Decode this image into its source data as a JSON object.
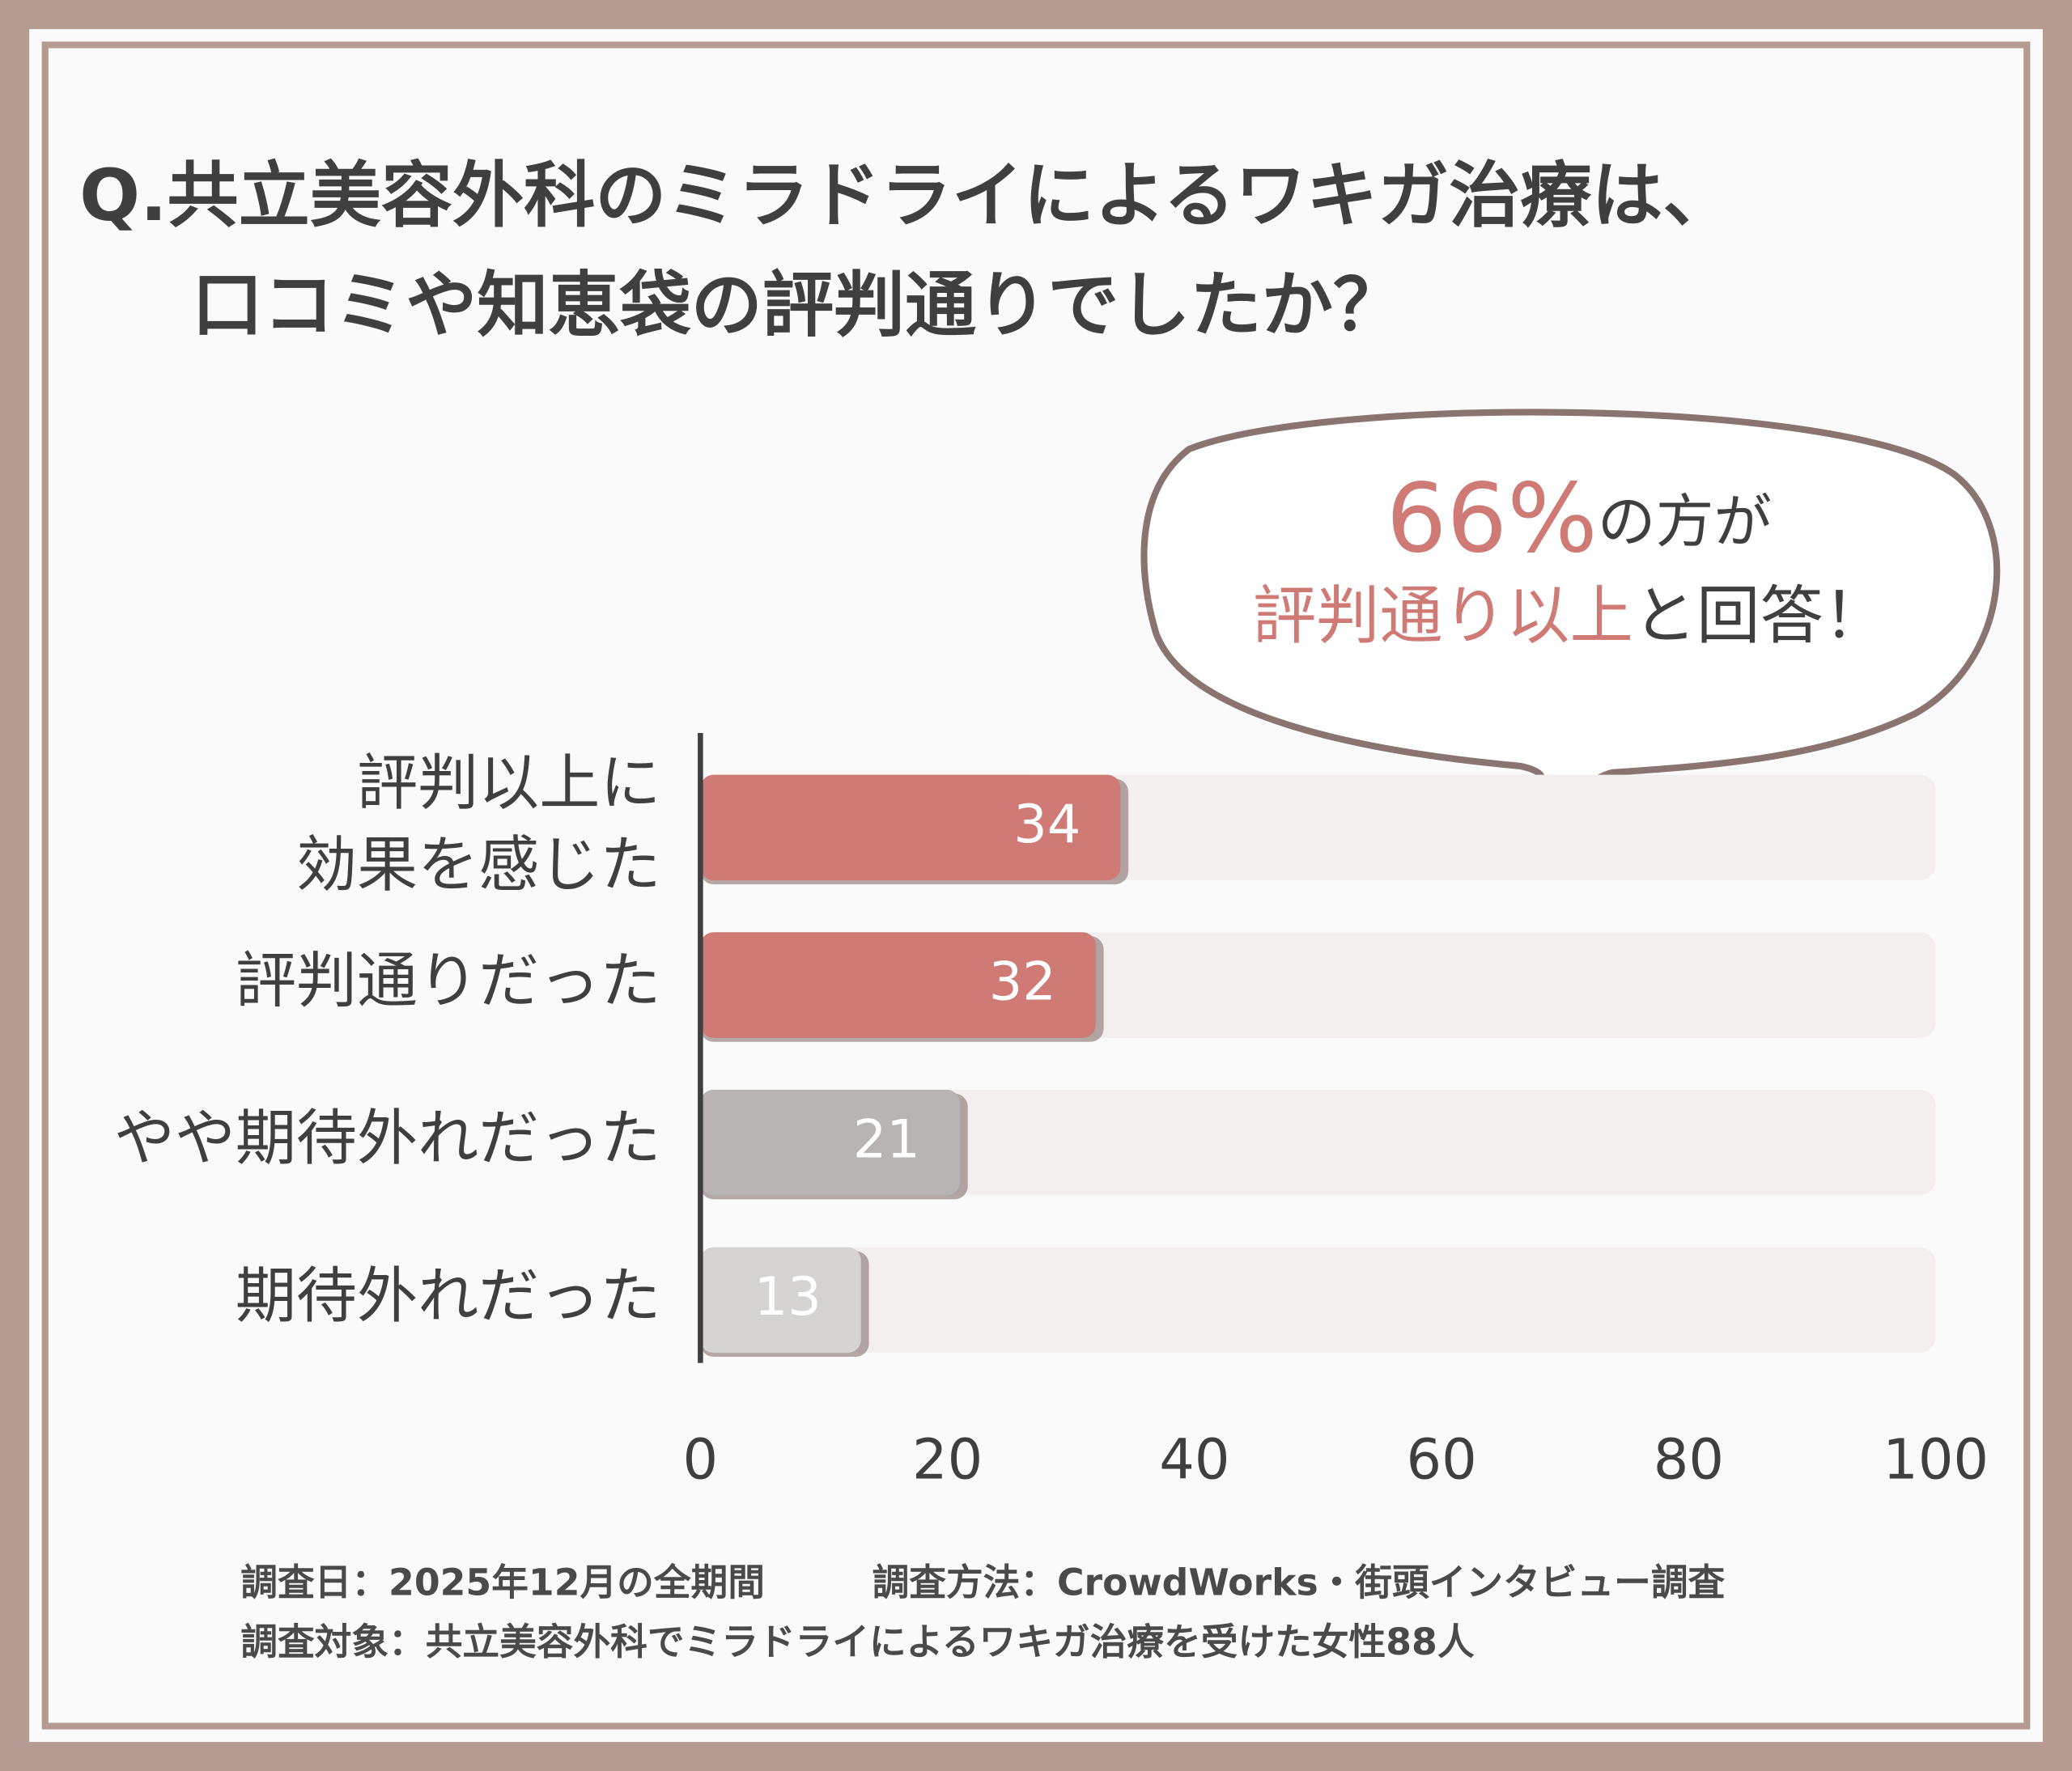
{
  "chart_data": {
    "type": "bar",
    "orientation": "horizontal",
    "title_lines": [
      "Q.共立美容外科のミラドライによるワキガ治療は、",
      "口コミや知恵袋の評判通りでしたか？"
    ],
    "categories": [
      "評判以上に\n効果を感じた",
      "評判通りだった",
      "やや期待外れだった",
      "期待外れだった"
    ],
    "values": [
      34,
      32,
      21,
      13
    ],
    "colors": [
      "#cf7a74",
      "#cf7a74",
      "#b8b4b3",
      "#d6d3d3"
    ],
    "xlim": [
      0,
      100
    ],
    "xticks": [
      0,
      20,
      40,
      60,
      80,
      100
    ],
    "callout": {
      "highlight": "66%",
      "line1_rest": "の方が",
      "line2_highlight": "評判通り以上",
      "line2_rest": "と回答！"
    },
    "footnotes": [
      "調査日：2025年12月の全期間",
      "調査方法：CrowdWorks・街頭インタビュー調査",
      "調査対象：共立美容外科でミラドライによるワキガ治療を受けた女性88人"
    ]
  }
}
